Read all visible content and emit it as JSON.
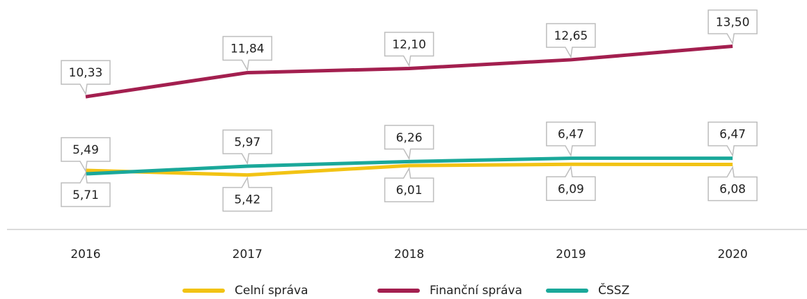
{
  "chart_data": {
    "type": "line",
    "categories": [
      "2016",
      "2017",
      "2018",
      "2019",
      "2020"
    ],
    "series": [
      {
        "name": "Celní správa",
        "color": "#f2c314",
        "values": [
          5.71,
          5.42,
          6.01,
          6.09,
          6.08
        ],
        "value_labels": [
          "5,71",
          "5,42",
          "6,01",
          "6,09",
          "6,08"
        ]
      },
      {
        "name": "Finanční správa",
        "color": "#a31f4f",
        "values": [
          10.33,
          11.84,
          12.1,
          12.65,
          13.5
        ],
        "value_labels": [
          "10,33",
          "11,84",
          "12,10",
          "12,65",
          "13,50"
        ]
      },
      {
        "name": "ČSSZ",
        "color": "#1aa89a",
        "values": [
          5.49,
          5.97,
          6.26,
          6.47,
          6.47
        ],
        "value_labels": [
          "5,49",
          "5,97",
          "6,26",
          "6,47",
          "6,47"
        ]
      }
    ],
    "ylim": [
      2,
      16.4
    ]
  }
}
